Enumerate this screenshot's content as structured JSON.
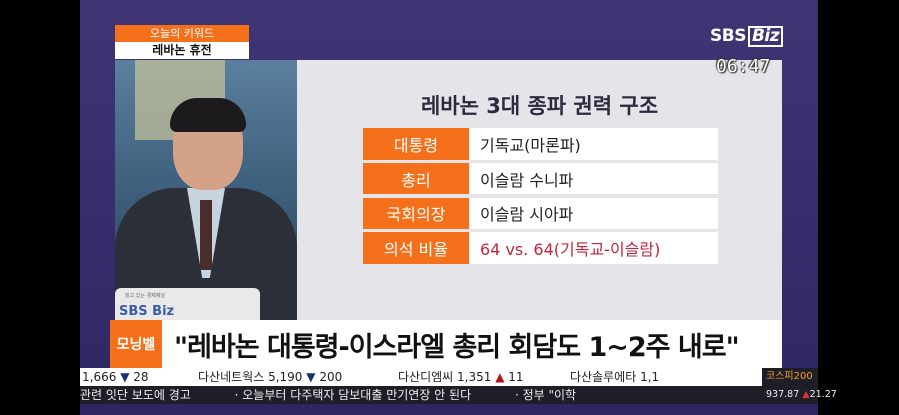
{
  "keyword": {
    "label": "오늘의 키워드",
    "value": "레바논 휴전"
  },
  "logo": "SBS Biz",
  "logo_parts": [
    "SBS",
    "Biz"
  ],
  "clock": "06:47",
  "laptop_logo": {
    "small": "읽고 있는 경제채널",
    "brand": "SBS Biz"
  },
  "panel": {
    "title": "레바논 3대 종파 권력 구조",
    "rows": [
      {
        "key": "대통령",
        "value": "기독교(마론파)"
      },
      {
        "key": "총리",
        "value": "이슬람 수니파"
      },
      {
        "key": "국회의장",
        "value": "이슬람 시아파"
      },
      {
        "key": "의석 비율",
        "value": "64 vs. 64(기독교-이슬람)"
      }
    ]
  },
  "headline": {
    "badge": "모닝벨",
    "text": "\"레바논 대통령-이스라엘 총리 회담도 1~2주 내로\""
  },
  "stock_ticker": [
    {
      "name": "",
      "price": "1,666",
      "dir": "▼",
      "change": "28"
    },
    {
      "name": "다산네트웍스",
      "price": "5,190",
      "dir": "▼",
      "change": "200"
    },
    {
      "name": "다산디엠씨",
      "price": "1,351",
      "dir": "▲",
      "change": "11"
    },
    {
      "name": "다산솔루에타",
      "price": "1,1",
      "dir": "",
      "change": ""
    }
  ],
  "news_ticker": [
    "관련 잇단 보도에 경고",
    "· 오늘부터 다주택자 담보대출 만기연장 안 된다",
    "· 정부 \"이학"
  ],
  "kospi": {
    "name": "코스피200",
    "value": "937.87",
    "dir": "▲",
    "change": "21.27"
  },
  "colors": {
    "accent": "#f5701b",
    "background": "#3a3070",
    "highlight_red": "#c1263a"
  }
}
